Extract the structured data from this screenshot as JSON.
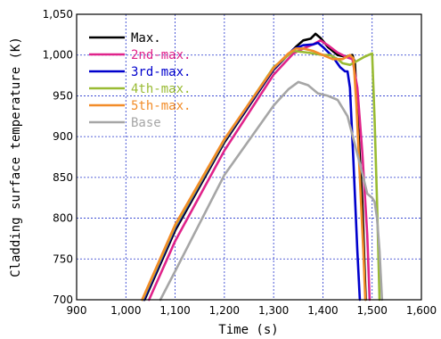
{
  "chart_data": {
    "type": "line",
    "xlabel": "Time (s)",
    "ylabel": "Cladding surface temperature (K)",
    "xlim": [
      900,
      1600
    ],
    "ylim": [
      700,
      1050
    ],
    "x_ticks": [
      "900",
      "1,000",
      "1,100",
      "1,200",
      "1,300",
      "1,400",
      "1,500",
      "1,600"
    ],
    "y_ticks": [
      "700",
      "750",
      "800",
      "850",
      "900",
      "950",
      "1,000",
      "1,050"
    ],
    "grid": "dotted",
    "legend_placement": "top-left",
    "series": [
      {
        "name": "Max.",
        "color": "#000000",
        "points": [
          [
            1038,
            700
          ],
          [
            1100,
            785
          ],
          [
            1200,
            893
          ],
          [
            1300,
            982
          ],
          [
            1345,
            1010
          ],
          [
            1360,
            1018
          ],
          [
            1375,
            1020
          ],
          [
            1385,
            1026
          ],
          [
            1395,
            1021
          ],
          [
            1410,
            1010
          ],
          [
            1430,
            1000
          ],
          [
            1445,
            998
          ],
          [
            1460,
            1000
          ],
          [
            1465,
            990
          ],
          [
            1470,
            930
          ],
          [
            1480,
            820
          ],
          [
            1487,
            700
          ]
        ]
      },
      {
        "name": "2nd-max.",
        "color": "#E0238A",
        "points": [
          [
            1047,
            700
          ],
          [
            1100,
            772
          ],
          [
            1200,
            883
          ],
          [
            1300,
            976
          ],
          [
            1340,
            1002
          ],
          [
            1360,
            1008
          ],
          [
            1380,
            1013
          ],
          [
            1395,
            1018
          ],
          [
            1410,
            1012
          ],
          [
            1430,
            1003
          ],
          [
            1450,
            997
          ],
          [
            1460,
            995
          ],
          [
            1470,
            960
          ],
          [
            1480,
            880
          ],
          [
            1490,
            780
          ],
          [
            1495,
            700
          ]
        ]
      },
      {
        "name": "3rd-max.",
        "color": "#0000CC",
        "points": [
          [
            1036,
            700
          ],
          [
            1100,
            788
          ],
          [
            1200,
            895
          ],
          [
            1300,
            983
          ],
          [
            1340,
            1007
          ],
          [
            1360,
            1012
          ],
          [
            1380,
            1013
          ],
          [
            1390,
            1015
          ],
          [
            1400,
            1010
          ],
          [
            1420,
            998
          ],
          [
            1435,
            985
          ],
          [
            1445,
            980
          ],
          [
            1450,
            980
          ],
          [
            1455,
            960
          ],
          [
            1462,
            870
          ],
          [
            1470,
            760
          ],
          [
            1475,
            700
          ]
        ]
      },
      {
        "name": "4th-max.",
        "color": "#99BB33",
        "points": [
          [
            1034,
            700
          ],
          [
            1100,
            790
          ],
          [
            1200,
            896
          ],
          [
            1300,
            985
          ],
          [
            1340,
            1005
          ],
          [
            1370,
            1003
          ],
          [
            1400,
            1000
          ],
          [
            1415,
            1000
          ],
          [
            1430,
            995
          ],
          [
            1440,
            990
          ],
          [
            1455,
            988
          ],
          [
            1470,
            993
          ],
          [
            1485,
            998
          ],
          [
            1500,
            1002
          ],
          [
            1505,
            920
          ],
          [
            1510,
            820
          ],
          [
            1515,
            700
          ]
        ]
      },
      {
        "name": "5th-max.",
        "color": "#F28C28",
        "points": [
          [
            1033,
            700
          ],
          [
            1100,
            792
          ],
          [
            1200,
            897
          ],
          [
            1300,
            984
          ],
          [
            1330,
            1002
          ],
          [
            1345,
            1008
          ],
          [
            1360,
            1008
          ],
          [
            1380,
            1005
          ],
          [
            1400,
            1000
          ],
          [
            1420,
            995
          ],
          [
            1440,
            995
          ],
          [
            1455,
            1000
          ],
          [
            1462,
            996
          ],
          [
            1468,
            940
          ],
          [
            1475,
            850
          ],
          [
            1482,
            760
          ],
          [
            1486,
            700
          ]
        ]
      },
      {
        "name": "Base",
        "color": "#A6A6A6",
        "points": [
          [
            1070,
            700
          ],
          [
            1100,
            735
          ],
          [
            1200,
            853
          ],
          [
            1300,
            938
          ],
          [
            1330,
            958
          ],
          [
            1350,
            967
          ],
          [
            1370,
            963
          ],
          [
            1390,
            953
          ],
          [
            1410,
            950
          ],
          [
            1430,
            945
          ],
          [
            1450,
            925
          ],
          [
            1465,
            890
          ],
          [
            1480,
            855
          ],
          [
            1490,
            830
          ],
          [
            1500,
            825
          ],
          [
            1505,
            820
          ],
          [
            1510,
            800
          ],
          [
            1515,
            760
          ],
          [
            1520,
            700
          ]
        ]
      }
    ]
  }
}
